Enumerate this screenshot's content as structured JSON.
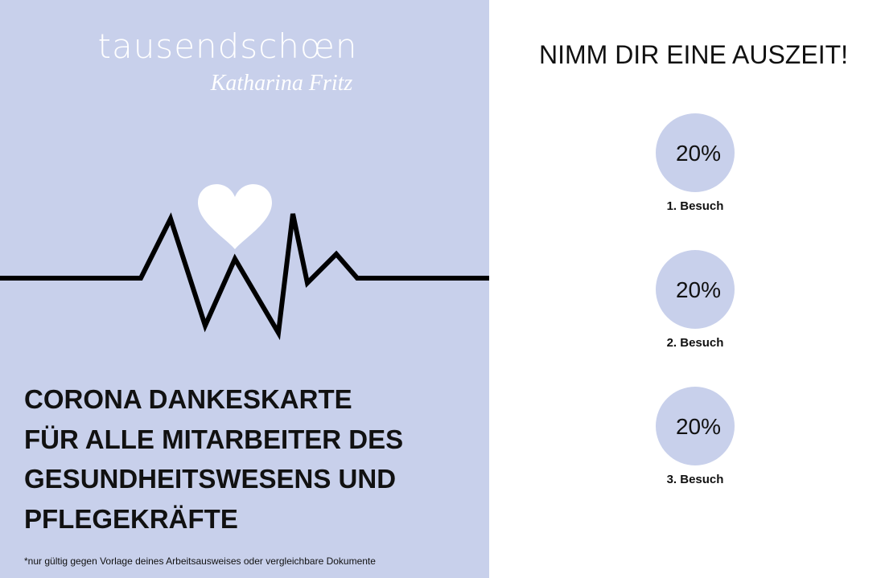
{
  "brand": {
    "name": "tausendschœn",
    "signature": "Katharina Fritz"
  },
  "headline": [
    "CORONA DANKESKARTE",
    "FÜR ALLE MITARBEITER DES",
    "GESUNDHEITSWESENS UND",
    "PFLEGEKRÄFTE"
  ],
  "footnote": "*nur gültig gegen Vorlage deines Arbeitsausweises oder vergleichbare Dokumente",
  "offer": {
    "title": "NIMM DIR EINE AUSZEIT!",
    "vouchers": [
      {
        "discount": "20%",
        "label": "1. Besuch"
      },
      {
        "discount": "20%",
        "label": "2. Besuch"
      },
      {
        "discount": "20%",
        "label": "3. Besuch"
      }
    ]
  }
}
